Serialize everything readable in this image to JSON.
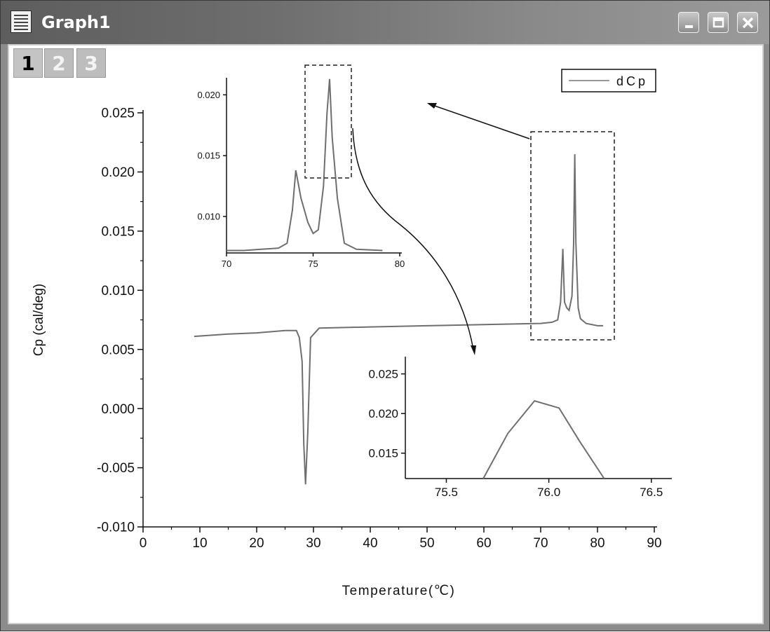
{
  "window": {
    "title": "Graph1",
    "icon": "graph-window-icon",
    "controls": [
      "minimize-icon",
      "restore-icon",
      "close-icon"
    ]
  },
  "layer_tabs": [
    {
      "label": "1",
      "active": true
    },
    {
      "label": "2",
      "active": false
    },
    {
      "label": "3",
      "active": false
    }
  ],
  "legend": {
    "label": "dCp"
  },
  "chart_data": [
    {
      "type": "line",
      "role": "main",
      "xlabel": "Temperature(℃)",
      "ylabel": "Cp (cal/deg)",
      "xlim": [
        0,
        90
      ],
      "ylim": [
        -0.01,
        0.025
      ],
      "xticks": [
        "0",
        "10",
        "20",
        "30",
        "40",
        "50",
        "60",
        "70",
        "80",
        "90"
      ],
      "yticks": [
        "-0.010",
        "-0.005",
        "0.000",
        "0.005",
        "0.010",
        "0.015",
        "0.020",
        "0.025"
      ],
      "series": [
        {
          "name": "dCp",
          "x": [
            9,
            15,
            20,
            25,
            27,
            27.5,
            28,
            28.3,
            28.6,
            29,
            29.5,
            31,
            40,
            50,
            60,
            70,
            72,
            73,
            73.5,
            73.9,
            74.2,
            74.6,
            75,
            75.5,
            75.8,
            76,
            76.2,
            76.6,
            77,
            78,
            80,
            81
          ],
          "y": [
            0.0061,
            0.0063,
            0.0064,
            0.0066,
            0.0066,
            0.006,
            0.004,
            -0.003,
            -0.0064,
            -0.002,
            0.006,
            0.0068,
            0.0069,
            0.007,
            0.0071,
            0.0072,
            0.0073,
            0.0075,
            0.009,
            0.0135,
            0.009,
            0.0085,
            0.0083,
            0.0095,
            0.014,
            0.0215,
            0.014,
            0.0085,
            0.0076,
            0.0072,
            0.007,
            0.007
          ]
        }
      ]
    },
    {
      "type": "line",
      "role": "inset-upper",
      "xlim": [
        70,
        80
      ],
      "ylim": [
        0.007,
        0.021
      ],
      "xticks": [
        "70",
        "75",
        "80"
      ],
      "yticks": [
        "0.010",
        "0.015",
        "0.020"
      ],
      "series": [
        {
          "name": "dCp",
          "x": [
            70,
            71,
            72,
            73,
            73.5,
            73.8,
            74,
            74.3,
            74.7,
            75,
            75.3,
            75.6,
            75.8,
            75.95,
            76.1,
            76.4,
            76.8,
            77.5,
            79
          ],
          "y": [
            0.0072,
            0.0072,
            0.0073,
            0.0074,
            0.0078,
            0.0105,
            0.0138,
            0.0115,
            0.0095,
            0.0086,
            0.0089,
            0.0125,
            0.0185,
            0.0213,
            0.0165,
            0.0115,
            0.0078,
            0.0073,
            0.0072
          ]
        }
      ]
    },
    {
      "type": "line",
      "role": "inset-lower",
      "xlim": [
        75.3,
        76.6
      ],
      "ylim": [
        0.0118,
        0.027
      ],
      "xticks": [
        "75.5",
        "76.0",
        "76.5"
      ],
      "yticks": [
        "0.015",
        "0.020",
        "0.025"
      ],
      "series": [
        {
          "name": "dCp",
          "x": [
            75.68,
            75.8,
            75.93,
            76.05,
            76.15,
            76.27
          ],
          "y": [
            0.0118,
            0.0175,
            0.0216,
            0.0207,
            0.0165,
            0.0118
          ]
        }
      ]
    }
  ]
}
